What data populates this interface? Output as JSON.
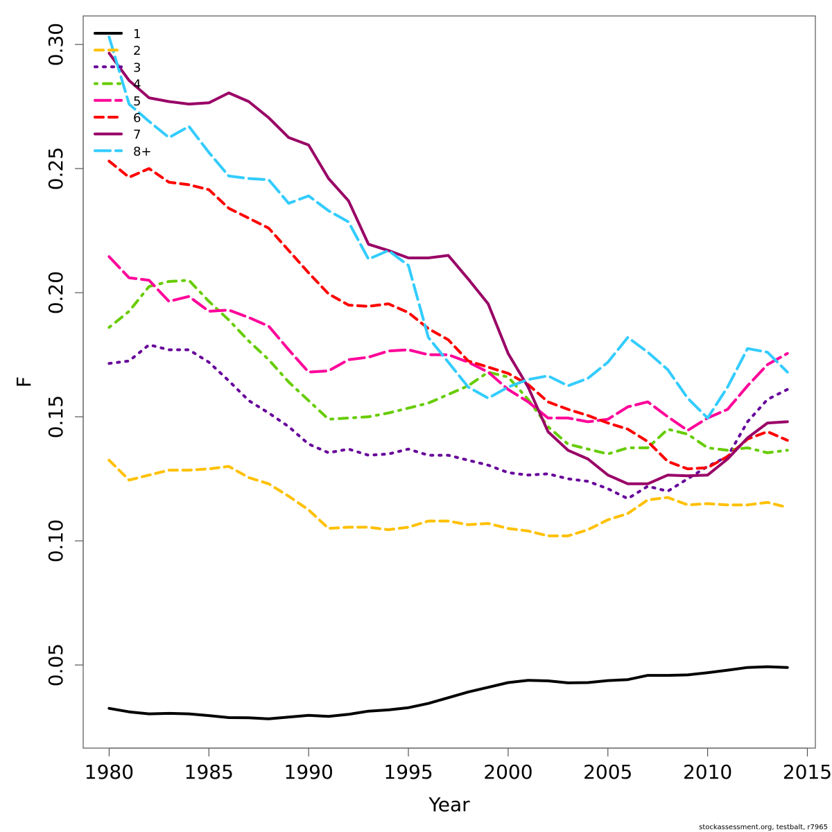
{
  "chart_data": {
    "type": "line",
    "title": "",
    "xlabel": "Year",
    "ylabel": "F",
    "xlim": [
      1978.7,
      2015.4
    ],
    "ylim": [
      0.0165,
      0.3115
    ],
    "x_ticks": [
      1980,
      1985,
      1990,
      1995,
      2000,
      2005,
      2010,
      2015
    ],
    "x_tick_labels": [
      "1980",
      "1985",
      "1990",
      "1995",
      "2000",
      "2005",
      "2010",
      "2015"
    ],
    "y_ticks": [
      0.05,
      0.1,
      0.15,
      0.2,
      0.25,
      0.3
    ],
    "y_tick_labels": [
      "0.05",
      "0.10",
      "0.15",
      "0.20",
      "0.25",
      "0.30"
    ],
    "grid": false,
    "legend_position": "top-left",
    "x": [
      1980,
      1981,
      1982,
      1983,
      1984,
      1985,
      1986,
      1987,
      1988,
      1989,
      1990,
      1991,
      1992,
      1993,
      1994,
      1995,
      1996,
      1997,
      1998,
      1999,
      2000,
      2001,
      2002,
      2003,
      2004,
      2005,
      2006,
      2007,
      2008,
      2009,
      2010,
      2011,
      2012,
      2013,
      2014
    ],
    "series": [
      {
        "name": "1",
        "color": "#000000",
        "dash": "solid",
        "values": [
          0.0325,
          0.0311,
          0.0303,
          0.0305,
          0.0303,
          0.0296,
          0.0288,
          0.0287,
          0.0283,
          0.029,
          0.0297,
          0.0293,
          0.0301,
          0.0314,
          0.0319,
          0.0328,
          0.0345,
          0.0368,
          0.0391,
          0.041,
          0.0429,
          0.0438,
          0.0436,
          0.0428,
          0.0429,
          0.0437,
          0.0441,
          0.0458,
          0.0458,
          0.046,
          0.0469,
          0.0479,
          0.049,
          0.0493,
          0.049
        ]
      },
      {
        "name": "2",
        "color": "#FFC000",
        "dash": "dashed",
        "values": [
          0.1325,
          0.1245,
          0.1265,
          0.1285,
          0.1285,
          0.129,
          0.13,
          0.1255,
          0.123,
          0.118,
          0.1125,
          0.105,
          0.1055,
          0.1055,
          0.1045,
          0.1055,
          0.108,
          0.108,
          0.1065,
          0.107,
          0.105,
          0.104,
          0.102,
          0.102,
          0.1045,
          0.1085,
          0.111,
          0.1165,
          0.1175,
          0.1145,
          0.115,
          0.1145,
          0.1145,
          0.1155,
          0.1135
        ]
      },
      {
        "name": "3",
        "color": "#660099",
        "dash": "dotted",
        "values": [
          0.1715,
          0.1725,
          0.179,
          0.177,
          0.177,
          0.172,
          0.1645,
          0.1565,
          0.1515,
          0.146,
          0.139,
          0.1355,
          0.137,
          0.1345,
          0.135,
          0.137,
          0.1345,
          0.1345,
          0.1325,
          0.1305,
          0.1275,
          0.1265,
          0.127,
          0.125,
          0.124,
          0.121,
          0.117,
          0.122,
          0.12,
          0.125,
          0.13,
          0.134,
          0.148,
          0.157,
          0.161
        ]
      },
      {
        "name": "4",
        "color": "#66CC00",
        "dash": "dotdash",
        "values": [
          0.186,
          0.1925,
          0.2025,
          0.2045,
          0.205,
          0.1965,
          0.189,
          0.1805,
          0.173,
          0.164,
          0.1565,
          0.149,
          0.1495,
          0.15,
          0.1515,
          0.1535,
          0.1555,
          0.159,
          0.1625,
          0.168,
          0.166,
          0.157,
          0.146,
          0.139,
          0.137,
          0.135,
          0.1375,
          0.1375,
          0.145,
          0.143,
          0.1375,
          0.1365,
          0.1375,
          0.1355,
          0.1365
        ]
      },
      {
        "name": "5",
        "color": "#FF0099",
        "dash": "longdash",
        "values": [
          0.2145,
          0.206,
          0.205,
          0.1965,
          0.1985,
          0.1925,
          0.193,
          0.19,
          0.1865,
          0.177,
          0.168,
          0.1685,
          0.173,
          0.174,
          0.1765,
          0.177,
          0.175,
          0.175,
          0.172,
          0.168,
          0.161,
          0.156,
          0.1495,
          0.1495,
          0.148,
          0.149,
          0.154,
          0.156,
          0.15,
          0.1445,
          0.1495,
          0.153,
          0.1625,
          0.171,
          0.1755
        ]
      },
      {
        "name": "6",
        "color": "#FF0000",
        "dash": "dashed",
        "values": [
          0.253,
          0.2465,
          0.25,
          0.2445,
          0.2435,
          0.2415,
          0.234,
          0.23,
          0.226,
          0.217,
          0.208,
          0.1995,
          0.195,
          0.1945,
          0.1955,
          0.192,
          0.1855,
          0.181,
          0.1725,
          0.17,
          0.1675,
          0.163,
          0.156,
          0.153,
          0.1505,
          0.1475,
          0.145,
          0.14,
          0.132,
          0.129,
          0.1295,
          0.134,
          0.141,
          0.144,
          0.1405
        ]
      },
      {
        "name": "7",
        "color": "#990066",
        "dash": "solid",
        "values": [
          0.2965,
          0.2855,
          0.2785,
          0.277,
          0.276,
          0.2765,
          0.2805,
          0.277,
          0.2705,
          0.2625,
          0.2595,
          0.246,
          0.237,
          0.2195,
          0.217,
          0.214,
          0.214,
          0.215,
          0.2055,
          0.1955,
          0.1755,
          0.162,
          0.144,
          0.1365,
          0.133,
          0.1265,
          0.123,
          0.123,
          0.1265,
          0.1262,
          0.1265,
          0.133,
          0.1415,
          0.1475,
          0.148
        ]
      },
      {
        "name": "8+",
        "color": "#33CCFF",
        "dash": "longdash",
        "values": [
          0.303,
          0.276,
          0.269,
          0.2625,
          0.267,
          0.2565,
          0.247,
          0.246,
          0.2455,
          0.236,
          0.239,
          0.233,
          0.2285,
          0.2135,
          0.217,
          0.211,
          0.182,
          0.172,
          0.162,
          0.1575,
          0.162,
          0.165,
          0.1665,
          0.1625,
          0.1655,
          0.172,
          0.182,
          0.176,
          0.169,
          0.1575,
          0.1495,
          0.162,
          0.1775,
          0.176,
          0.168
        ]
      }
    ]
  },
  "credit": "stockassessment.org, testbalt, r7965"
}
